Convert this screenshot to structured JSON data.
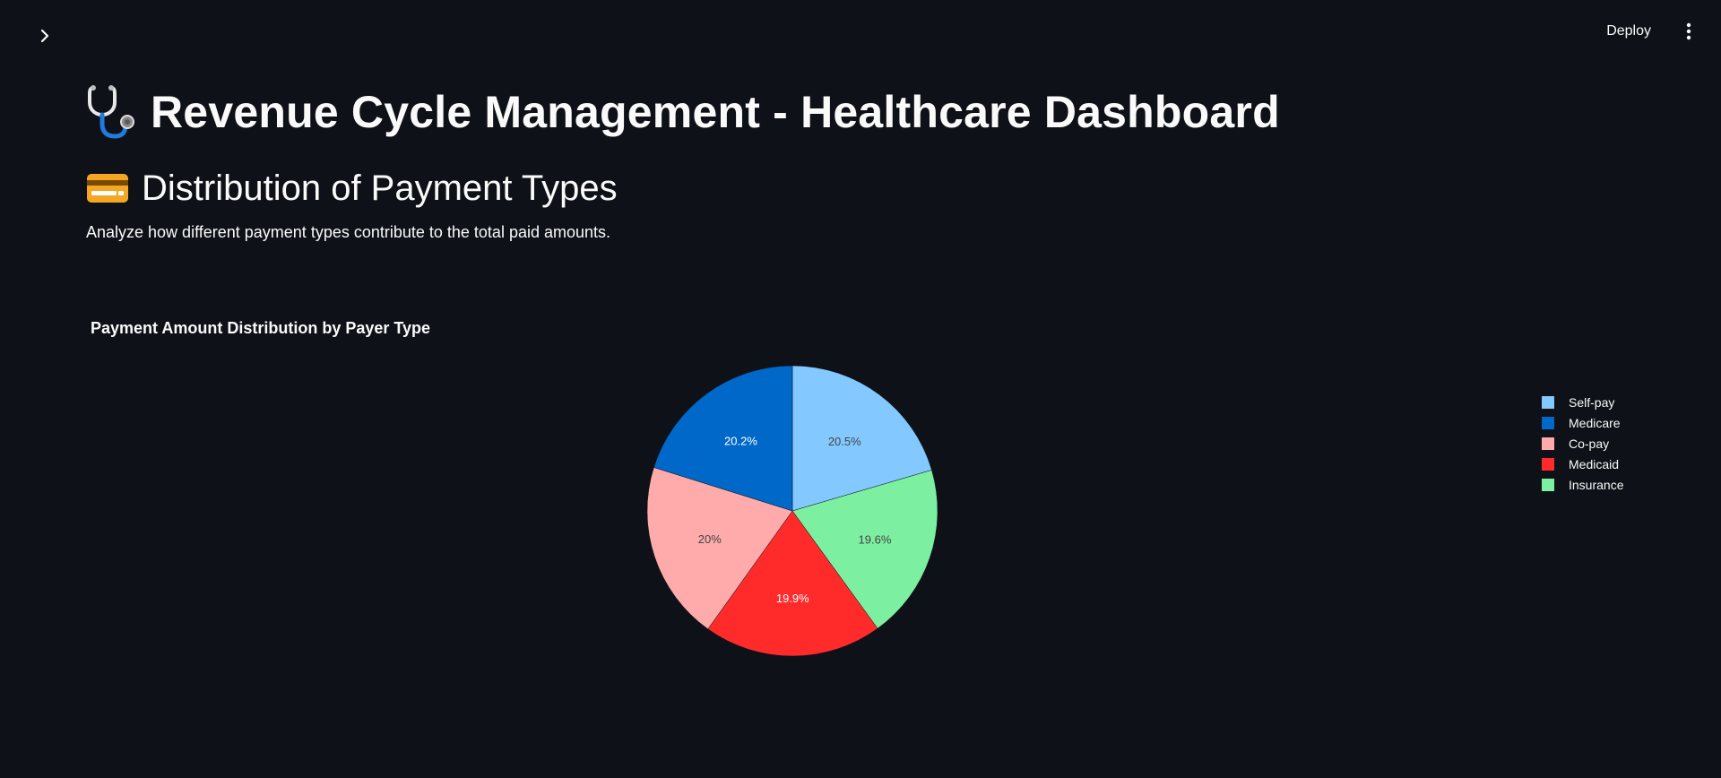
{
  "header": {
    "sidebar_toggle_icon": "chevron-right-icon",
    "deploy_label": "Deploy",
    "menu_icon": "vertical-dots-icon"
  },
  "page": {
    "title": "Revenue Cycle Management - Healthcare Dashboard",
    "title_icon": "stethoscope-icon"
  },
  "section": {
    "title": "Distribution of Payment Types",
    "title_icon": "credit-card-icon",
    "caption": "Analyze how different payment types contribute to the total paid amounts."
  },
  "chart_data": {
    "type": "pie",
    "title": "Payment Amount Distribution by Payer Type",
    "legend_position": "right",
    "slices": [
      {
        "label": "Self-pay",
        "percent_label": "20.5%",
        "value": 20.5,
        "color": "#83c9ff",
        "text_color": "#444444"
      },
      {
        "label": "Insurance",
        "percent_label": "19.6%",
        "value": 19.6,
        "color": "#7defa1",
        "text_color": "#444444"
      },
      {
        "label": "Medicaid",
        "percent_label": "19.9%",
        "value": 19.9,
        "color": "#ff2b2b",
        "text_color": "#ffffff"
      },
      {
        "label": "Co-pay",
        "percent_label": "20%",
        "value": 20.0,
        "color": "#ffabab",
        "text_color": "#444444"
      },
      {
        "label": "Medicare",
        "percent_label": "20.2%",
        "value": 20.2,
        "color": "#0068c9",
        "text_color": "#ffffff"
      }
    ],
    "legend": [
      {
        "label": "Self-pay",
        "color": "#83c9ff"
      },
      {
        "label": "Medicare",
        "color": "#0068c9"
      },
      {
        "label": "Co-pay",
        "color": "#ffabab"
      },
      {
        "label": "Medicaid",
        "color": "#ff2b2b"
      },
      {
        "label": "Insurance",
        "color": "#7defa1"
      }
    ]
  }
}
